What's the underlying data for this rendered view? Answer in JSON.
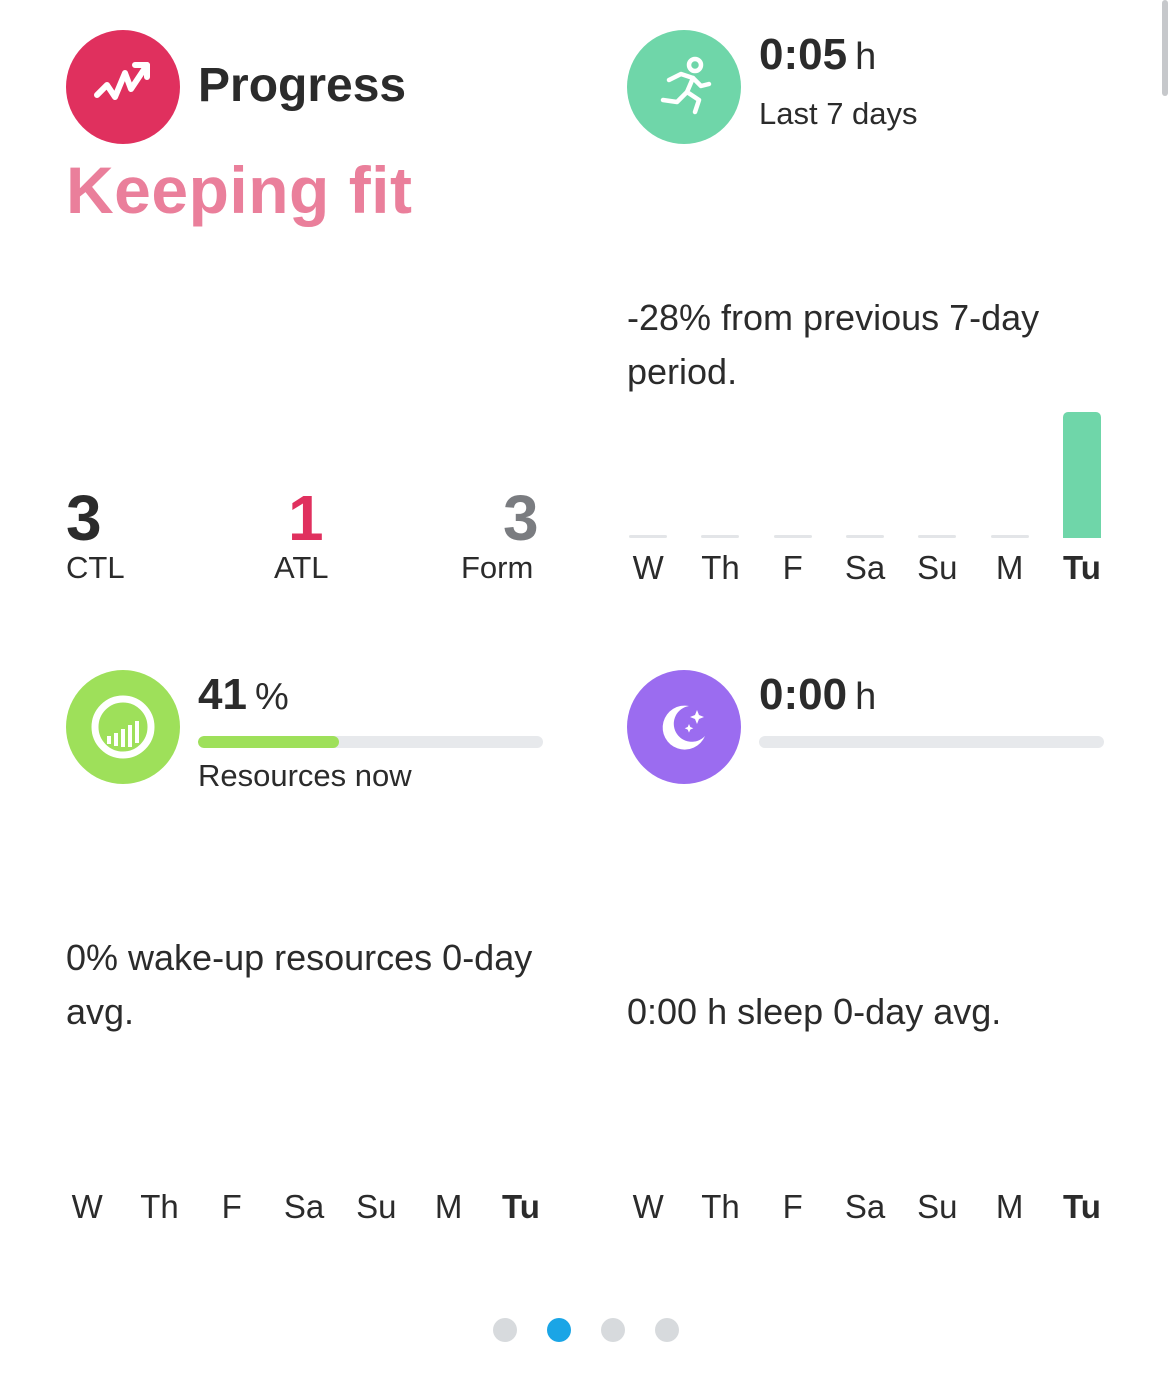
{
  "progress": {
    "title": "Progress",
    "status": "Keeping fit",
    "icon": "trend-up-icon",
    "icon_color": "#e0305e",
    "ctl": {
      "value": "3",
      "label": "CTL",
      "color": "#2b2b2b"
    },
    "atl": {
      "value": "1",
      "label": "ATL",
      "color": "#e0305e"
    },
    "form": {
      "value": "3",
      "label": "Form",
      "color": "#7a7c80"
    }
  },
  "activity": {
    "icon": "running-person-icon",
    "icon_color": "#6fd6a9",
    "value": "0:05",
    "unit": "h",
    "period_label": "Last 7 days",
    "description": "-28% from previous 7-day period.",
    "days": [
      "W",
      "Th",
      "F",
      "Sa",
      "Su",
      "M",
      "Tu"
    ],
    "today_index": 6,
    "bar_values": [
      0,
      0,
      0,
      0,
      0,
      0,
      5
    ],
    "bar_color": "#6fd6a9"
  },
  "resources": {
    "icon": "resources-gauge-icon",
    "icon_color": "#9ee05a",
    "value": "41",
    "unit": "%",
    "progress": 0.41,
    "progress_color": "#9ee05a",
    "caption": "Resources now",
    "description": "0% wake-up resources 0-day avg.",
    "days": [
      "W",
      "Th",
      "F",
      "Sa",
      "Su",
      "M",
      "Tu"
    ],
    "today_index": 6
  },
  "sleep": {
    "icon": "moon-stars-icon",
    "icon_color": "#9b6cf0",
    "value": "0:00",
    "unit": "h",
    "progress": 0,
    "description": "0:00 h sleep 0-day avg.",
    "days": [
      "W",
      "Th",
      "F",
      "Sa",
      "Su",
      "M",
      "Tu"
    ],
    "today_index": 6
  },
  "pager": {
    "count": 4,
    "active_index": 1,
    "active_color": "#1aa5e6"
  }
}
